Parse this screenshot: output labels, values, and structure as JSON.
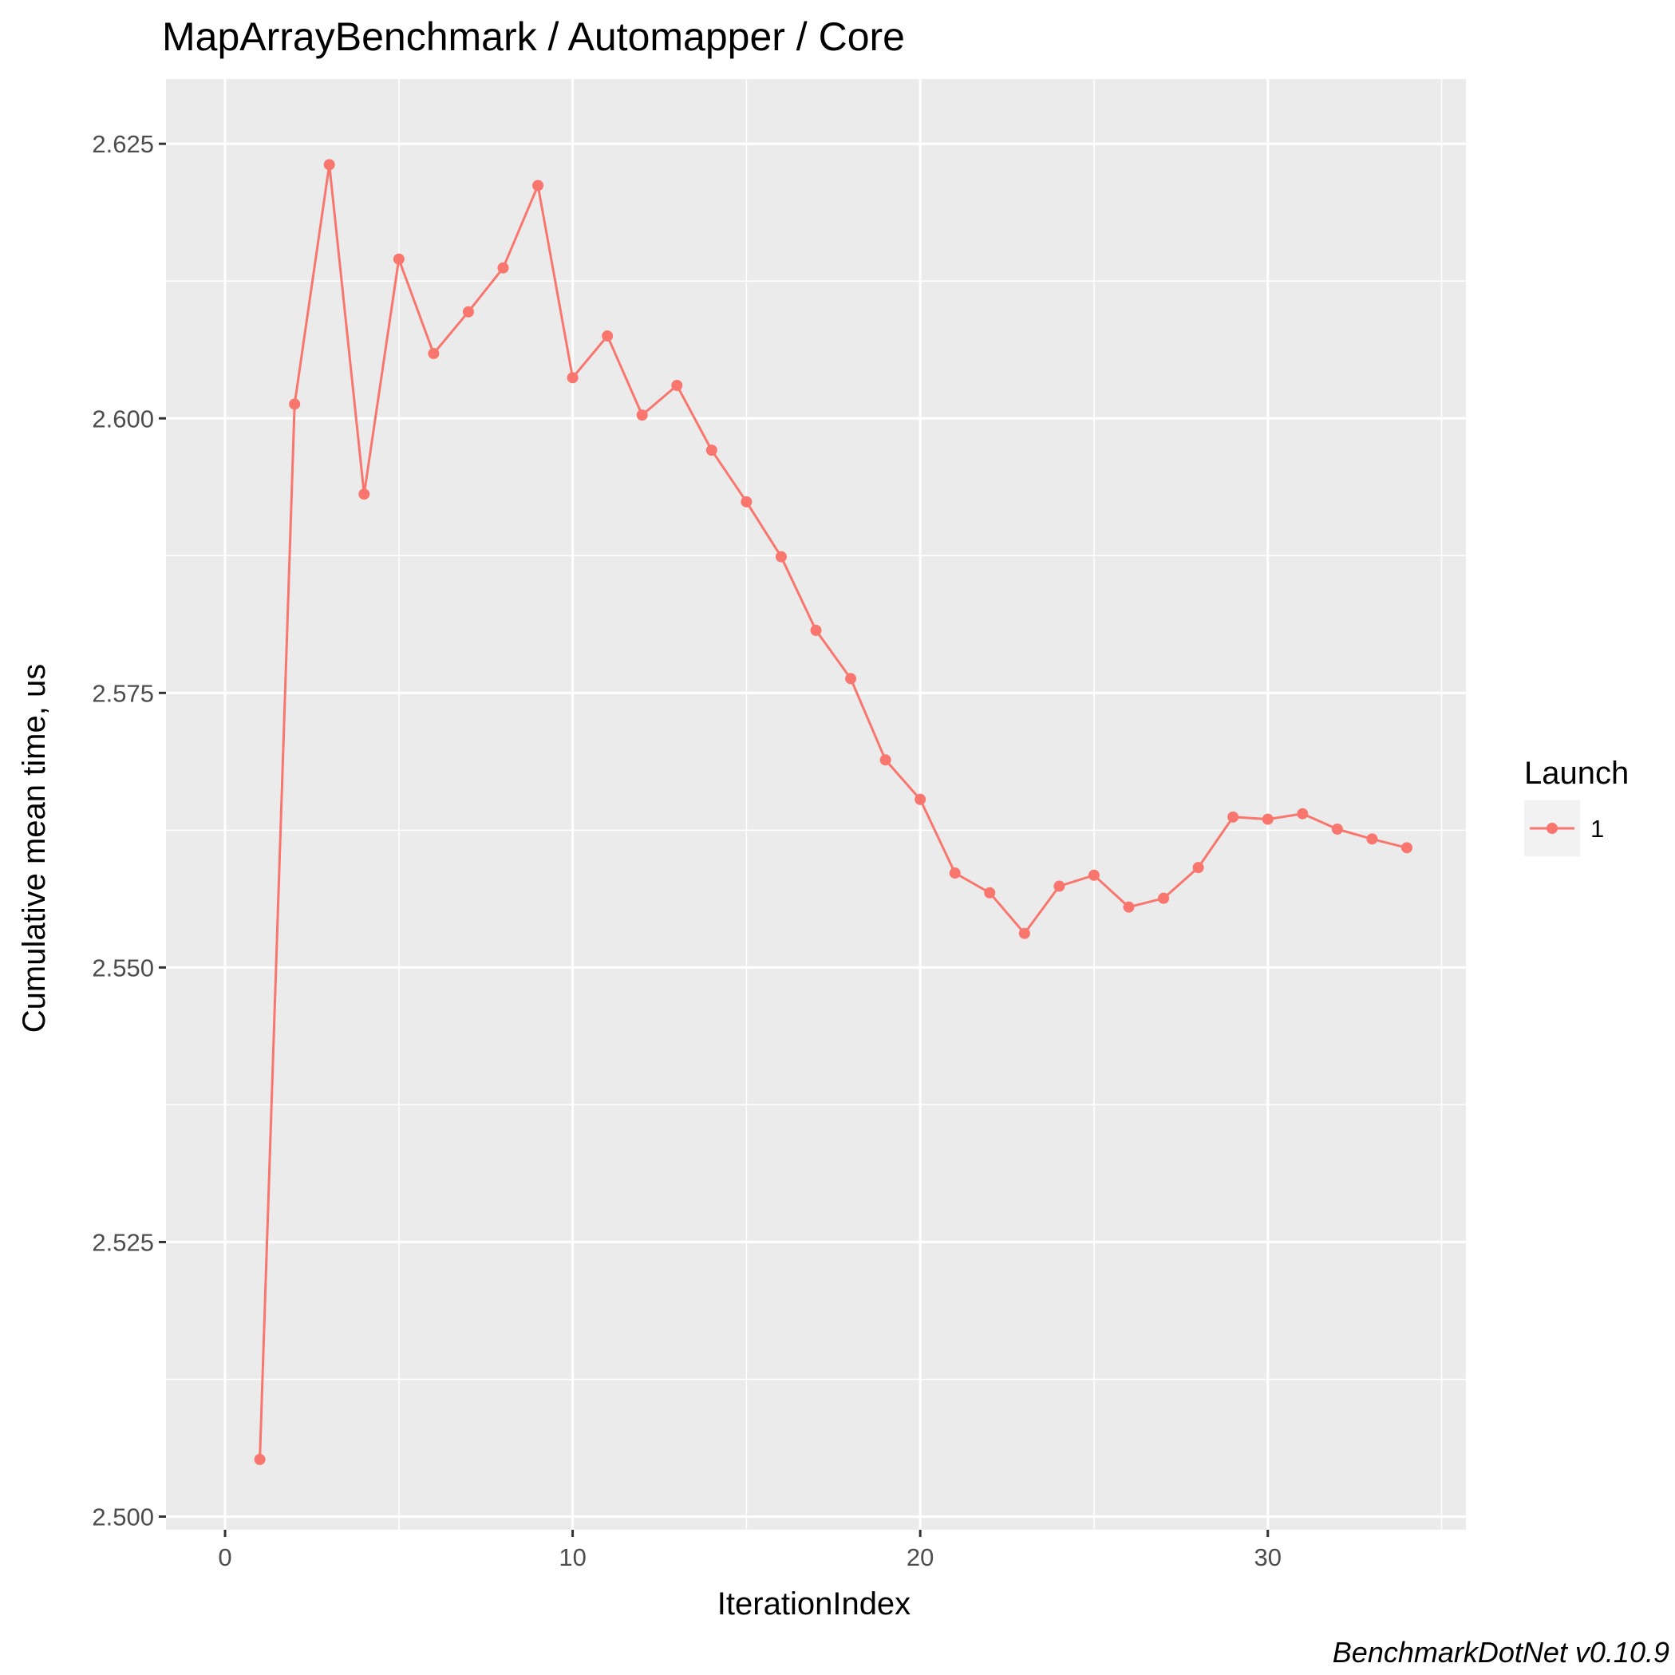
{
  "chart_data": {
    "type": "line",
    "title": "MapArrayBenchmark / Automapper / Core",
    "xlabel": "IterationIndex",
    "ylabel": "Cumulative mean time, us",
    "caption": "BenchmarkDotNet v0.10.9",
    "xlim": [
      -1.7,
      35.7
    ],
    "ylim": [
      2.4988,
      2.6309
    ],
    "x_ticks": [
      0,
      10,
      20,
      30
    ],
    "x_tick_labels": [
      "0",
      "10",
      "20",
      "30"
    ],
    "y_ticks": [
      2.5,
      2.525,
      2.55,
      2.575,
      2.6,
      2.625
    ],
    "y_tick_labels": [
      "2.500",
      "2.525",
      "2.550",
      "2.575",
      "2.600",
      "2.625"
    ],
    "grid": true,
    "legend": {
      "title": "Launch",
      "position": "right"
    },
    "series": [
      {
        "name": "1",
        "color": "#F8766D",
        "x": [
          1,
          2,
          3,
          4,
          5,
          6,
          7,
          8,
          9,
          10,
          11,
          12,
          13,
          14,
          15,
          16,
          17,
          18,
          19,
          20,
          21,
          22,
          23,
          24,
          25,
          26,
          27,
          28,
          29,
          30,
          31,
          32,
          33,
          34
        ],
        "values": [
          2.5052,
          2.6013,
          2.6231,
          2.5931,
          2.6145,
          2.6059,
          2.6097,
          2.6137,
          2.6212,
          2.6037,
          2.6075,
          2.6003,
          2.603,
          2.5971,
          2.5924,
          2.5874,
          2.5807,
          2.5763,
          2.5689,
          2.5653,
          2.5586,
          2.5568,
          2.5531,
          2.5574,
          2.5584,
          2.5555,
          2.5563,
          2.5591,
          2.5637,
          2.5635,
          2.564,
          2.5626,
          2.5617,
          2.5609
        ]
      }
    ]
  }
}
